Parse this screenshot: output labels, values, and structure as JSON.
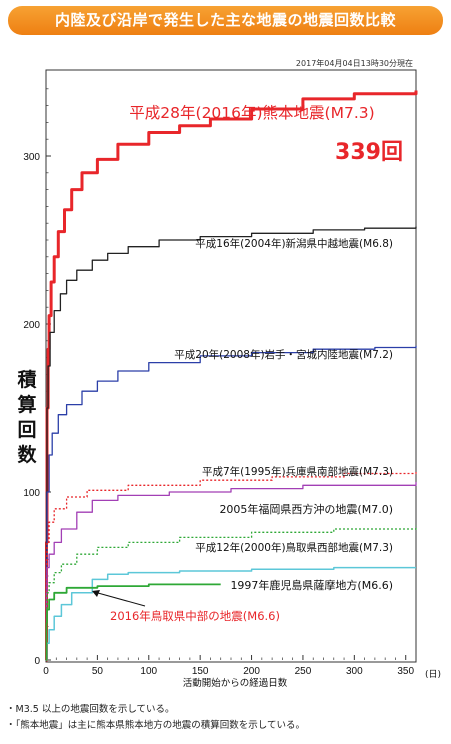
{
  "title": "内陸及び沿岸で発生した主な地震の地震回数比較",
  "timestamp": "2017年04月04日13時30分現在",
  "notes": [
    "・M3.5 以上の地震回数を示している。",
    "・「熊本地震」は主に熊本県熊本地方の地震の積算回数を示している。"
  ],
  "colors": {
    "banner": "#f08a1c",
    "kumamoto": "#e8262a",
    "niigata": "#222222",
    "iwate": "#2b3fa8",
    "hyogo": "#e8262a",
    "fukuoka": "#a23fb5",
    "tottori2000": "#2ea836",
    "kagoshima": "#5cc7d8",
    "tottori2016": "#2ea836"
  },
  "chart_data": {
    "type": "line",
    "xlabel": "活動開始からの経過日数",
    "xunit": "(日)",
    "ylabel": "積算回数",
    "xlim": [
      0,
      360
    ],
    "ylim": [
      0,
      350
    ],
    "xticks": [
      0,
      50,
      100,
      150,
      200,
      250,
      300,
      350
    ],
    "yticks": [
      0,
      100,
      200,
      300
    ],
    "highlight_count": "339回",
    "series": [
      {
        "name": "平成28年(2016年)熊本地震(M7.3)",
        "color": "#e8262a",
        "style": "solid",
        "width": 3,
        "label_color": "#e8262a",
        "points": [
          [
            0,
            0
          ],
          [
            0.5,
            70
          ],
          [
            1,
            150
          ],
          [
            2,
            185
          ],
          [
            3,
            205
          ],
          [
            5,
            225
          ],
          [
            8,
            240
          ],
          [
            12,
            255
          ],
          [
            18,
            268
          ],
          [
            25,
            280
          ],
          [
            35,
            290
          ],
          [
            50,
            298
          ],
          [
            70,
            307
          ],
          [
            100,
            314
          ],
          [
            130,
            318
          ],
          [
            160,
            322
          ],
          [
            200,
            328
          ],
          [
            250,
            334
          ],
          [
            300,
            337
          ],
          [
            360,
            339
          ]
        ]
      },
      {
        "name": "平成16年(2004年)新潟県中越地震(M6.8)",
        "color": "#222222",
        "style": "solid",
        "width": 1.3,
        "label_color": "#111111",
        "points": [
          [
            0,
            0
          ],
          [
            0.5,
            100
          ],
          [
            1,
            150
          ],
          [
            2,
            175
          ],
          [
            4,
            195
          ],
          [
            8,
            208
          ],
          [
            14,
            218
          ],
          [
            20,
            226
          ],
          [
            30,
            232
          ],
          [
            45,
            238
          ],
          [
            60,
            242
          ],
          [
            80,
            246
          ],
          [
            110,
            250
          ],
          [
            150,
            252
          ],
          [
            200,
            254
          ],
          [
            260,
            256
          ],
          [
            310,
            257
          ],
          [
            360,
            258
          ]
        ]
      },
      {
        "name": "平成20年(2008年)岩手・宮城内陸地震(M7.2)",
        "color": "#2b3fa8",
        "style": "solid",
        "width": 1.3,
        "label_color": "#111111",
        "points": [
          [
            0,
            0
          ],
          [
            0.5,
            60
          ],
          [
            1,
            100
          ],
          [
            3,
            122
          ],
          [
            6,
            135
          ],
          [
            12,
            146
          ],
          [
            20,
            152
          ],
          [
            35,
            160
          ],
          [
            50,
            166
          ],
          [
            70,
            172
          ],
          [
            100,
            177
          ],
          [
            150,
            181
          ],
          [
            200,
            183
          ],
          [
            260,
            185
          ],
          [
            320,
            186
          ],
          [
            360,
            187
          ]
        ]
      },
      {
        "name": "平成7年(1995年)兵庫県南部地震(M7.3)",
        "color": "#e8262a",
        "style": "dotted",
        "width": 1.3,
        "label_color": "#111111",
        "points": [
          [
            0,
            0
          ],
          [
            0.5,
            50
          ],
          [
            1,
            70
          ],
          [
            3,
            82
          ],
          [
            8,
            90
          ],
          [
            20,
            97
          ],
          [
            40,
            101
          ],
          [
            80,
            104
          ],
          [
            150,
            107
          ],
          [
            220,
            109
          ],
          [
            290,
            111
          ],
          [
            360,
            113
          ]
        ]
      },
      {
        "name": "2005年福岡県西方沖の地震(M7.0)",
        "color": "#a23fb5",
        "style": "solid",
        "width": 1.3,
        "label_color": "#111111",
        "points": [
          [
            0,
            0
          ],
          [
            0.5,
            40
          ],
          [
            1,
            55
          ],
          [
            3,
            63
          ],
          [
            8,
            70
          ],
          [
            15,
            78
          ],
          [
            30,
            88
          ],
          [
            45,
            95
          ],
          [
            70,
            98
          ],
          [
            120,
            100
          ],
          [
            180,
            102
          ],
          [
            250,
            104
          ],
          [
            360,
            106
          ]
        ]
      },
      {
        "name": "平成12年(2000年)鳥取県西部地震(M7.3)",
        "color": "#2ea836",
        "style": "dotted",
        "width": 1.3,
        "label_color": "#111111",
        "points": [
          [
            0,
            0
          ],
          [
            0.5,
            28
          ],
          [
            1,
            40
          ],
          [
            3,
            46
          ],
          [
            8,
            52
          ],
          [
            15,
            57
          ],
          [
            30,
            63
          ],
          [
            50,
            67
          ],
          [
            80,
            70
          ],
          [
            130,
            73
          ],
          [
            200,
            76
          ],
          [
            280,
            78
          ],
          [
            360,
            80
          ]
        ]
      },
      {
        "name": "1997年鹿児島県薩摩地方(M6.6)",
        "color": "#5cc7d8",
        "style": "solid",
        "width": 1.5,
        "label_color": "#111111",
        "points": [
          [
            0,
            0
          ],
          [
            1,
            10
          ],
          [
            3,
            18
          ],
          [
            8,
            26
          ],
          [
            15,
            33
          ],
          [
            25,
            40
          ],
          [
            45,
            48
          ],
          [
            60,
            51
          ],
          [
            80,
            52
          ],
          [
            130,
            53
          ],
          [
            200,
            54
          ],
          [
            280,
            55
          ],
          [
            360,
            55
          ]
        ]
      },
      {
        "name": "2016年鳥取県中部の地震(M6.6)",
        "color": "#2ea836",
        "style": "solid",
        "width": 1.8,
        "label_color": "#e8262a",
        "points": [
          [
            0,
            0
          ],
          [
            0.5,
            22
          ],
          [
            1,
            30
          ],
          [
            3,
            36
          ],
          [
            8,
            40
          ],
          [
            20,
            43
          ],
          [
            50,
            44
          ],
          [
            100,
            45
          ],
          [
            140,
            45
          ],
          [
            170,
            45
          ]
        ]
      }
    ]
  }
}
